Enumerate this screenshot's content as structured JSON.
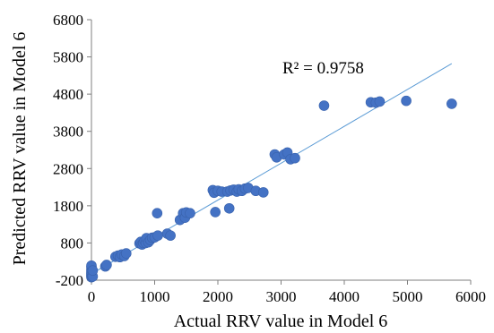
{
  "chart_data": {
    "type": "scatter",
    "xlabel": "Actual RRV value in Model 6",
    "ylabel": "Predicted RRV value in Model 6",
    "xlim": [
      0,
      6000
    ],
    "ylim": [
      -200,
      6800
    ],
    "x_ticks": [
      "0",
      "1000",
      "2000",
      "3000",
      "4000",
      "5000",
      "6000"
    ],
    "y_ticks": [
      "-200",
      "800",
      "1800",
      "2800",
      "3800",
      "4800",
      "5800",
      "6800"
    ],
    "x_tick_values": [
      0,
      1000,
      2000,
      3000,
      4000,
      5000,
      6000
    ],
    "y_tick_values": [
      -200,
      800,
      1800,
      2800,
      3800,
      4800,
      5800,
      6800
    ],
    "annotation": "R² = 0.9758",
    "grid": false,
    "marker_color": "#4472c4",
    "trendline_color": "#5b9bd5",
    "trendline": {
      "x": [
        0,
        5700
      ],
      "y": [
        -30,
        5620
      ]
    },
    "points": [
      {
        "x": 0,
        "y": -120
      },
      {
        "x": 0,
        "y": -90
      },
      {
        "x": 0,
        "y": -60
      },
      {
        "x": 0,
        "y": -30
      },
      {
        "x": 0,
        "y": 0
      },
      {
        "x": 0,
        "y": 40
      },
      {
        "x": 0,
        "y": 90
      },
      {
        "x": 0,
        "y": 150
      },
      {
        "x": 0,
        "y": 190
      },
      {
        "x": 20,
        "y": -100
      },
      {
        "x": 20,
        "y": 60
      },
      {
        "x": 220,
        "y": 170
      },
      {
        "x": 240,
        "y": 210
      },
      {
        "x": 380,
        "y": 430
      },
      {
        "x": 420,
        "y": 460
      },
      {
        "x": 450,
        "y": 420
      },
      {
        "x": 480,
        "y": 490
      },
      {
        "x": 520,
        "y": 450
      },
      {
        "x": 550,
        "y": 520
      },
      {
        "x": 760,
        "y": 790
      },
      {
        "x": 780,
        "y": 830
      },
      {
        "x": 800,
        "y": 760
      },
      {
        "x": 820,
        "y": 800
      },
      {
        "x": 840,
        "y": 860
      },
      {
        "x": 860,
        "y": 800
      },
      {
        "x": 870,
        "y": 930
      },
      {
        "x": 900,
        "y": 820
      },
      {
        "x": 930,
        "y": 880
      },
      {
        "x": 960,
        "y": 940
      },
      {
        "x": 1000,
        "y": 950
      },
      {
        "x": 1050,
        "y": 1000
      },
      {
        "x": 1040,
        "y": 1600
      },
      {
        "x": 1200,
        "y": 1050
      },
      {
        "x": 1250,
        "y": 1000
      },
      {
        "x": 1400,
        "y": 1420
      },
      {
        "x": 1450,
        "y": 1600
      },
      {
        "x": 1480,
        "y": 1480
      },
      {
        "x": 1500,
        "y": 1620
      },
      {
        "x": 1560,
        "y": 1600
      },
      {
        "x": 1920,
        "y": 2220
      },
      {
        "x": 1940,
        "y": 2150
      },
      {
        "x": 1960,
        "y": 1630
      },
      {
        "x": 2000,
        "y": 2200
      },
      {
        "x": 2060,
        "y": 2180
      },
      {
        "x": 2150,
        "y": 2180
      },
      {
        "x": 2180,
        "y": 1730
      },
      {
        "x": 2200,
        "y": 2210
      },
      {
        "x": 2250,
        "y": 2230
      },
      {
        "x": 2300,
        "y": 2180
      },
      {
        "x": 2330,
        "y": 2240
      },
      {
        "x": 2380,
        "y": 2200
      },
      {
        "x": 2430,
        "y": 2260
      },
      {
        "x": 2480,
        "y": 2280
      },
      {
        "x": 2600,
        "y": 2200
      },
      {
        "x": 2720,
        "y": 2160
      },
      {
        "x": 2900,
        "y": 3180
      },
      {
        "x": 2930,
        "y": 3100
      },
      {
        "x": 3050,
        "y": 3180
      },
      {
        "x": 3100,
        "y": 3230
      },
      {
        "x": 3150,
        "y": 3050
      },
      {
        "x": 3220,
        "y": 3080
      },
      {
        "x": 3680,
        "y": 4490
      },
      {
        "x": 4420,
        "y": 4580
      },
      {
        "x": 4500,
        "y": 4570
      },
      {
        "x": 4560,
        "y": 4600
      },
      {
        "x": 4980,
        "y": 4620
      },
      {
        "x": 5700,
        "y": 4540
      }
    ]
  }
}
